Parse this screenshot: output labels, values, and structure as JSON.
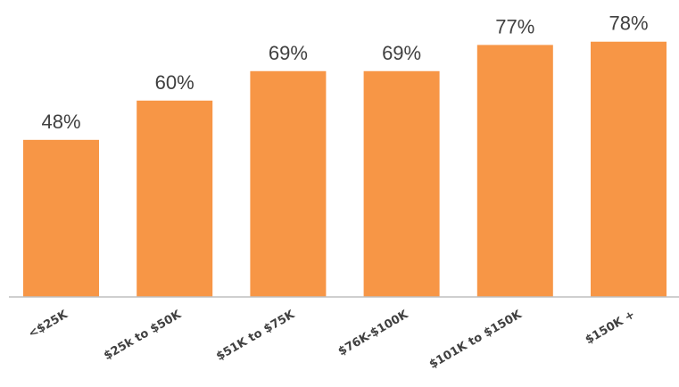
{
  "chart_data": {
    "type": "bar",
    "categories": [
      "<$25K",
      "$25k to $50K",
      "$51K to $75K",
      "$76K-$100K",
      "$101K to $150K",
      "$150K +"
    ],
    "values": [
      48,
      60,
      69,
      69,
      77,
      78
    ],
    "data_labels": [
      "48%",
      "60%",
      "69%",
      "69%",
      "77%",
      "78%"
    ],
    "unit": "%",
    "title": "",
    "xlabel": "",
    "ylabel": "",
    "ylim": [
      0,
      90
    ],
    "grid": false,
    "legend": "none",
    "colors": {
      "bar": "#F79646",
      "text": "#404040",
      "axis": "#BFBFBF"
    }
  }
}
